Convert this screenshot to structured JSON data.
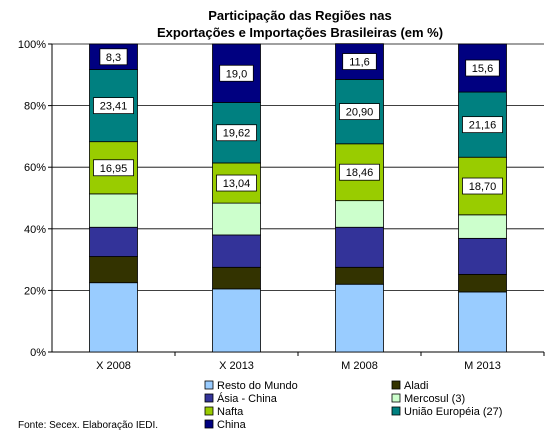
{
  "chart_data": {
    "type": "bar",
    "stacked": true,
    "title": [
      "Participação das Regiões nas",
      "Exportações e Importações Brasileiras (em %)"
    ],
    "categories": [
      "X 2008",
      "X 2013",
      "M 2008",
      "M 2013"
    ],
    "y_ticks": [
      "0%",
      "20%",
      "40%",
      "60%",
      "80%",
      "100%"
    ],
    "ylim": [
      0,
      100
    ],
    "grid": true,
    "legend_position": "bottom",
    "series": [
      {
        "name": "Resto do Mundo",
        "color": "#99ccff",
        "values": [
          22.5,
          20.5,
          22.0,
          19.5
        ],
        "labels": [
          null,
          null,
          null,
          null
        ]
      },
      {
        "name": "Aladi",
        "color": "#333300",
        "values": [
          8.5,
          7.0,
          5.5,
          5.7
        ],
        "labels": [
          null,
          null,
          null,
          null
        ]
      },
      {
        "name": "Ásia - China",
        "color": "#333399",
        "values": [
          9.5,
          10.5,
          13.0,
          11.7
        ],
        "labels": [
          null,
          null,
          null,
          null
        ]
      },
      {
        "name": "Mercosul (3)",
        "color": "#ccffcc",
        "values": [
          10.84,
          10.34,
          8.64,
          7.64
        ],
        "labels": [
          null,
          null,
          null,
          null
        ]
      },
      {
        "name": "Nafta",
        "color": "#99cc00",
        "values": [
          16.95,
          13.04,
          18.46,
          18.7
        ],
        "labels": [
          "16,95",
          "13,04",
          "18,46",
          "18,70"
        ]
      },
      {
        "name": "União Européia (27)",
        "color": "#008080",
        "values": [
          23.41,
          19.62,
          20.9,
          21.16
        ],
        "labels": [
          "23,41",
          "19,62",
          "20,90",
          "21,16"
        ]
      },
      {
        "name": "China",
        "color": "#000080",
        "values": [
          8.3,
          19.0,
          11.6,
          15.6
        ],
        "labels": [
          "8,3",
          "19,0",
          "11,6",
          "15,6"
        ]
      }
    ],
    "legend_order": [
      "Resto do Mundo",
      "Aladi",
      "Ásia - China",
      "Mercosul (3)",
      "Nafta",
      "União Européia (27)",
      "China"
    ],
    "source": "Fonte: Secex. Elaboração IEDI."
  }
}
